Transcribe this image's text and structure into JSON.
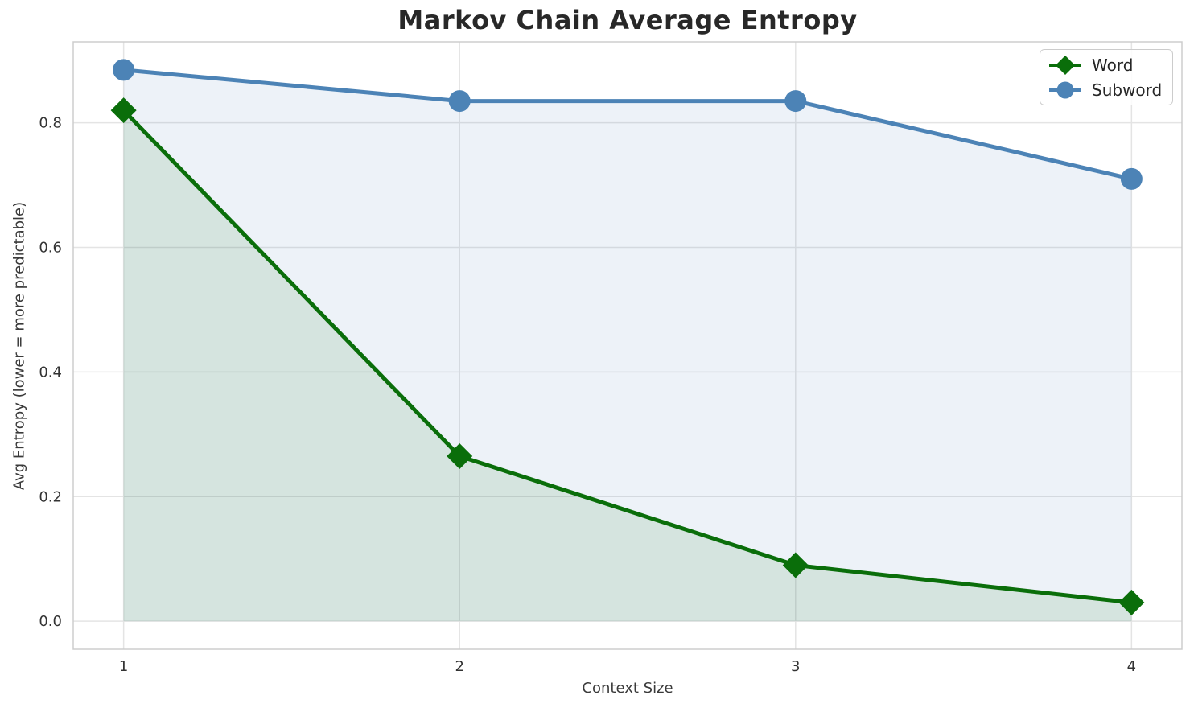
{
  "chart_data": {
    "type": "line",
    "title": "Markov Chain Average Entropy",
    "xlabel": "Context Size",
    "ylabel": "Avg Entropy (lower = more predictable)",
    "x": [
      1,
      2,
      3,
      4
    ],
    "x_tick_labels": [
      "1",
      "2",
      "3",
      "4"
    ],
    "y_ticks": [
      0.0,
      0.2,
      0.4,
      0.6,
      0.8
    ],
    "y_tick_labels": [
      "0.0",
      "0.2",
      "0.4",
      "0.6",
      "0.8"
    ],
    "xlim": [
      0.85,
      4.15
    ],
    "ylim": [
      -0.045,
      0.93
    ],
    "grid": true,
    "legend_position": "upper right",
    "fill_baseline": 0,
    "series": [
      {
        "name": "Word",
        "marker": "diamond",
        "color": "#0a6e0a",
        "fill_alpha": 0.1,
        "values": [
          0.82,
          0.265,
          0.09,
          0.03
        ]
      },
      {
        "name": "Subword",
        "marker": "circle",
        "color": "#4c83b6",
        "fill_alpha": 0.1,
        "values": [
          0.885,
          0.835,
          0.835,
          0.71
        ]
      }
    ],
    "colors": {
      "grid": "#e4e4e4",
      "plot_border": "#cdcdcd",
      "tick_text": "#333333",
      "title_text": "#282828",
      "axis_label_text": "#3a3a3a",
      "legend_border": "#cccccc"
    }
  }
}
